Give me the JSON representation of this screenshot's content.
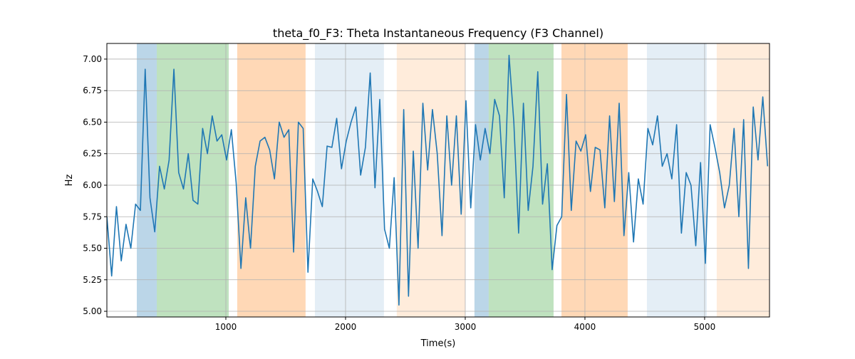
{
  "chart_data": {
    "type": "line",
    "title": "theta_f0_F3: Theta Instantaneous Frequency (F3 Channel)",
    "xlabel": "Time(s)",
    "ylabel": "Hz",
    "x": [
      6,
      46,
      86,
      126,
      166,
      206,
      246,
      286,
      326,
      366,
      406,
      446,
      486,
      526,
      566,
      606,
      646,
      686,
      726,
      766,
      806,
      846,
      886,
      926,
      966,
      1006,
      1046,
      1086,
      1126,
      1166,
      1206,
      1246,
      1286,
      1326,
      1366,
      1406,
      1446,
      1486,
      1526,
      1566,
      1606,
      1646,
      1686,
      1726,
      1766,
      1806,
      1846,
      1886,
      1926,
      1966,
      2006,
      2046,
      2086,
      2126,
      2166,
      2206,
      2246,
      2286,
      2326,
      2366,
      2406,
      2446,
      2486,
      2526,
      2566,
      2606,
      2646,
      2686,
      2726,
      2766,
      2806,
      2846,
      2886,
      2926,
      2966,
      3006,
      3046,
      3086,
      3126,
      3166,
      3206,
      3246,
      3286,
      3326,
      3366,
      3406,
      3446,
      3486,
      3526,
      3566,
      3606,
      3646,
      3686,
      3726,
      3766,
      3806,
      3846,
      3886,
      3926,
      3966,
      4006,
      4046,
      4086,
      4126,
      4166,
      4206,
      4246,
      4286,
      4326,
      4366,
      4406,
      4446,
      4486,
      4526,
      4566,
      4606,
      4646,
      4686,
      4726,
      4766,
      4806,
      4846,
      4886,
      4926,
      4966,
      5006,
      5046,
      5086,
      5126,
      5166,
      5206,
      5246,
      5286,
      5326,
      5366,
      5406,
      5446,
      5486,
      5526
    ],
    "series": [
      {
        "name": "theta_f0_F3",
        "color": "#1f77b4",
        "values": [
          5.75,
          5.28,
          5.83,
          5.4,
          5.69,
          5.5,
          5.85,
          5.8,
          6.92,
          5.9,
          5.63,
          6.15,
          5.97,
          6.2,
          6.92,
          6.1,
          5.97,
          6.25,
          5.88,
          5.85,
          6.45,
          6.25,
          6.55,
          6.35,
          6.4,
          6.2,
          6.44,
          6.02,
          5.34,
          5.9,
          5.5,
          6.15,
          6.35,
          6.38,
          6.28,
          6.05,
          6.5,
          6.38,
          6.44,
          5.47,
          6.5,
          6.45,
          5.31,
          6.05,
          5.95,
          5.83,
          6.31,
          6.3,
          6.53,
          6.13,
          6.35,
          6.5,
          6.62,
          6.08,
          6.3,
          6.89,
          5.98,
          6.68,
          5.65,
          5.5,
          6.06,
          5.05,
          6.6,
          5.12,
          6.27,
          5.5,
          6.65,
          6.12,
          6.6,
          6.25,
          5.6,
          6.55,
          6.0,
          6.55,
          5.77,
          6.67,
          5.82,
          6.48,
          6.2,
          6.45,
          6.25,
          6.68,
          6.55,
          5.9,
          7.03,
          6.5,
          5.62,
          6.65,
          5.8,
          6.15,
          6.9,
          5.85,
          6.17,
          5.33,
          5.68,
          5.75,
          6.72,
          5.8,
          6.35,
          6.27,
          6.4,
          5.95,
          6.3,
          6.28,
          5.82,
          6.55,
          5.87,
          6.65,
          5.6,
          6.1,
          5.55,
          6.05,
          5.85,
          6.45,
          6.32,
          6.55,
          6.15,
          6.25,
          6.05,
          6.48,
          5.62,
          6.1,
          6.0,
          5.52,
          6.18,
          5.38,
          6.48,
          6.3,
          6.1,
          5.82,
          6.0,
          6.45,
          5.75,
          6.52,
          5.34,
          6.62,
          6.2,
          6.7,
          6.15
        ]
      }
    ],
    "spans": [
      {
        "start": 256,
        "end": 423,
        "color": "#1f77b4",
        "opacity": 0.3
      },
      {
        "start": 423,
        "end": 1024,
        "color": "#2ca02c",
        "opacity": 0.3
      },
      {
        "start": 1095,
        "end": 1666,
        "color": "#ff7f0e",
        "opacity": 0.3
      },
      {
        "start": 1744,
        "end": 2321,
        "color": "#1f77b4",
        "opacity": 0.12
      },
      {
        "start": 2428,
        "end": 2999,
        "color": "#ff7f0e",
        "opacity": 0.15
      },
      {
        "start": 3077,
        "end": 3196,
        "color": "#1f77b4",
        "opacity": 0.3
      },
      {
        "start": 3196,
        "end": 3738,
        "color": "#2ca02c",
        "opacity": 0.3
      },
      {
        "start": 3804,
        "end": 4357,
        "color": "#ff7f0e",
        "opacity": 0.3
      },
      {
        "start": 4518,
        "end": 5018,
        "color": "#1f77b4",
        "opacity": 0.12
      },
      {
        "start": 5101,
        "end": 5542,
        "color": "#ff7f0e",
        "opacity": 0.15
      }
    ],
    "xlim": [
      6,
      5542
    ],
    "ylim": [
      4.955,
      7.124
    ],
    "xticks": [
      1000,
      2000,
      3000,
      4000,
      5000
    ],
    "yticks": [
      {
        "value": 5,
        "label": "5.00"
      },
      {
        "value": 5.25,
        "label": "5.25"
      },
      {
        "value": 5.5,
        "label": "5.50"
      },
      {
        "value": 5.75,
        "label": "5.75"
      },
      {
        "value": 6,
        "label": "6.00"
      },
      {
        "value": 6.25,
        "label": "6.25"
      },
      {
        "value": 6.5,
        "label": "6.50"
      },
      {
        "value": 6.75,
        "label": "6.75"
      },
      {
        "value": 7,
        "label": "7.00"
      }
    ],
    "grid": true
  }
}
